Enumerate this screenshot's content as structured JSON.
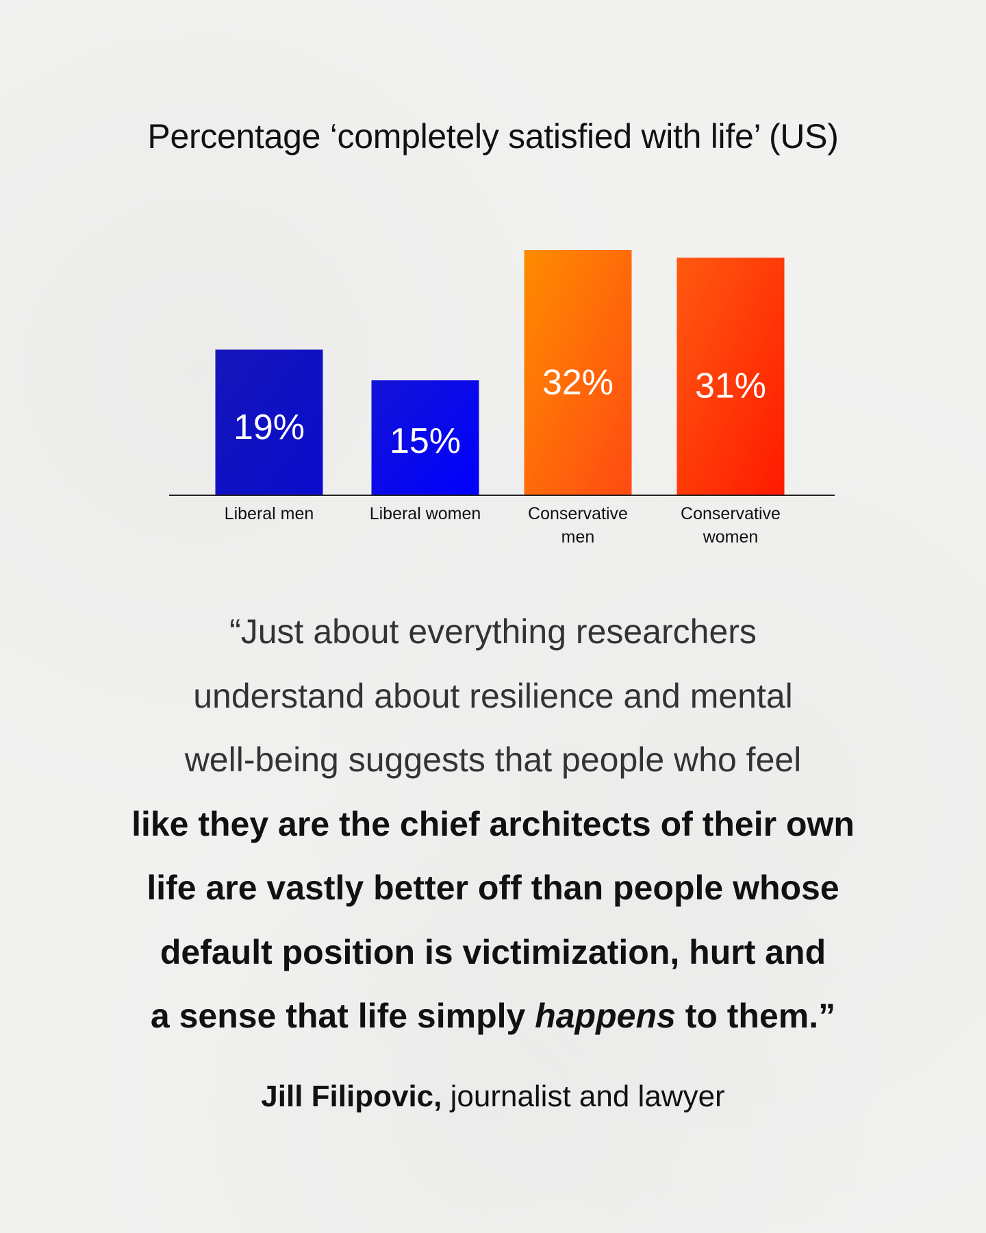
{
  "chart_data": {
    "type": "bar",
    "title": "Percentage ‘completely satisfied with life’ (US)",
    "categories": [
      "Liberal men",
      "Liberal women",
      "Conservative men",
      "Conservative women"
    ],
    "category_lines": [
      [
        "Liberal men"
      ],
      [
        "Liberal women"
      ],
      [
        "Conservative",
        "men"
      ],
      [
        "Conservative",
        "women"
      ]
    ],
    "values": [
      19,
      15,
      32,
      31
    ],
    "value_labels": [
      "19%",
      "15%",
      "32%",
      "31%"
    ],
    "unit": "%",
    "ylim": [
      0,
      32
    ],
    "xlabel": "",
    "ylabel": "",
    "grid": false,
    "legend": "none",
    "bar_colors": [
      [
        "#1516ba",
        "#0a0ccc"
      ],
      [
        "#1313d6",
        "#0000ff"
      ],
      [
        "#ff8c00",
        "#ff4a12"
      ],
      [
        "#ff5a10",
        "#ff1a00"
      ]
    ],
    "axis_color": "#222222"
  },
  "quote": {
    "lines": [
      "“Just about everything researchers",
      "understand about resilience and mental",
      "well-being suggests that people who feel",
      "like they are the chief architects of their own",
      "life are vastly better off than people whose",
      "default position is victimization, hurt and"
    ],
    "last_line_before": "a sense that life simply ",
    "last_line_emphasis": "happens",
    "last_line_after": " to them.”"
  },
  "attribution": {
    "author": "Jill Filipovic,",
    "role": " journalist and lawyer"
  }
}
